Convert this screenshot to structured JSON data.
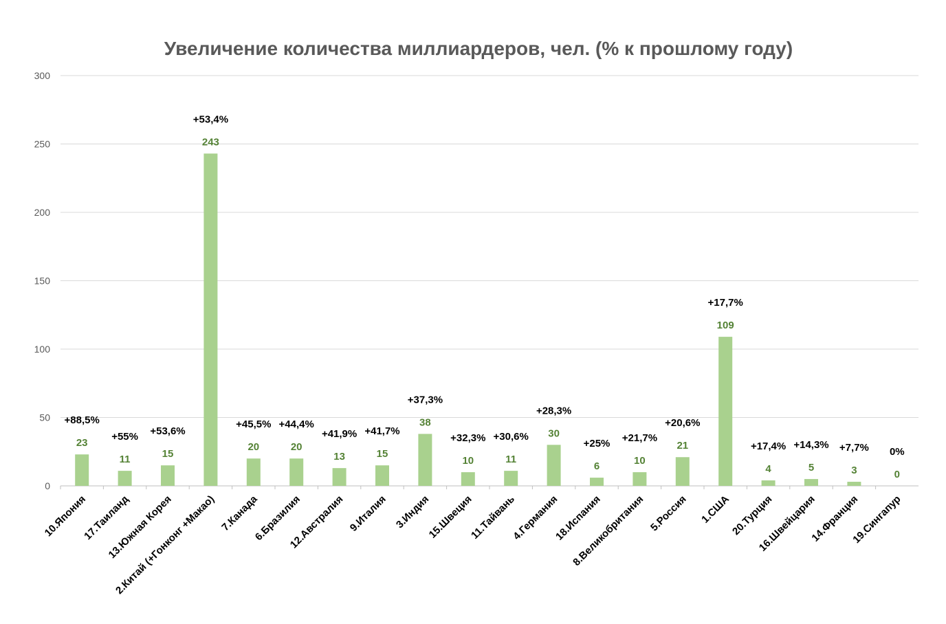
{
  "chart_data": {
    "type": "bar",
    "title": "Увеличение количества миллиардеров, чел. (% к прошлому году)",
    "xlabel": "",
    "ylabel": "",
    "ylim": [
      0,
      300
    ],
    "yticks": [
      0,
      50,
      100,
      150,
      200,
      250,
      300
    ],
    "grid": true,
    "categories": [
      "10.Япония",
      "17.Таиланд",
      "13.Южная Корея",
      "2.Китай (+Гонконг +Макао)",
      "7.Канада",
      "6.Бразилия",
      "12.Австралия",
      "9.Италия",
      "3.Индия",
      "15.Швеция",
      "11.Тайвань",
      "4.Германия",
      "18.Испания",
      "8.Великобритания",
      "5.Россия",
      "1.США",
      "20.Турция",
      "16.Швейцария",
      "14.Франция",
      "19.Сингапур"
    ],
    "values": [
      23,
      11,
      15,
      243,
      20,
      20,
      13,
      15,
      38,
      10,
      11,
      30,
      6,
      10,
      21,
      109,
      4,
      5,
      3,
      0
    ],
    "value_labels": [
      "23",
      "11",
      "15",
      "243",
      "20",
      "20",
      "13",
      "15",
      "38",
      "10",
      "11",
      "30",
      "6",
      "10",
      "21",
      "109",
      "4",
      "5",
      "3",
      "0"
    ],
    "annotations": [
      "+88,5%",
      "+55%",
      "+53,6%",
      "+53,4%",
      "+45,5%",
      "+44,4%",
      "+41,9%",
      "+41,7%",
      "+37,3%",
      "+32,3%",
      "+30,6%",
      "+28,3%",
      "+25%",
      "+21,7%",
      "+20,6%",
      "+17,7%",
      "+17,4%",
      "+14,3%",
      "+7,7%",
      "0%"
    ],
    "colors": {
      "bar": "#a9d18e",
      "value_label": "#548235",
      "annotation": "#000000",
      "grid": "#d9d9d9",
      "axis": "#bfbfbf",
      "title": "#595959",
      "tick": "#595959"
    }
  }
}
